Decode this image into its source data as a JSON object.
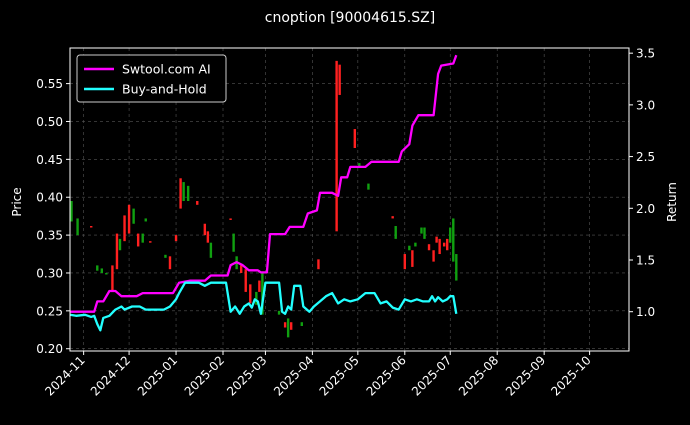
{
  "chart_data": {
    "type": "line",
    "title": "cnoption [90004615.SZ]",
    "ylabel_left": "Price",
    "ylabel_right": "Return",
    "y_left": {
      "lim": [
        0.197,
        0.597
      ],
      "ticks": [
        0.2,
        0.25,
        0.3,
        0.35,
        0.4,
        0.45,
        0.5,
        0.55
      ],
      "tick_labels": [
        "0.20",
        "0.25",
        "0.30",
        "0.35",
        "0.40",
        "0.45",
        "0.50",
        "0.55"
      ]
    },
    "y_right": {
      "lim": [
        0.62,
        3.55
      ],
      "ticks": [
        1.0,
        1.5,
        2.0,
        2.5,
        3.0,
        3.5
      ],
      "tick_labels": [
        "1.0",
        "1.5",
        "2.0",
        "2.5",
        "3.0",
        "3.5"
      ]
    },
    "x": {
      "lim": [
        "2024-10-23",
        "2025-10-27"
      ],
      "ticks": [
        "2024-11-01",
        "2024-12-01",
        "2025-01-01",
        "2025-02-01",
        "2025-03-01",
        "2025-04-01",
        "2025-05-01",
        "2025-06-01",
        "2025-07-01",
        "2025-08-01",
        "2025-09-01",
        "2025-10-01"
      ],
      "tick_labels": [
        "2024-11",
        "2024-12",
        "2025-01",
        "2025-02",
        "2025-03",
        "2025-04",
        "2025-05",
        "2025-06",
        "2025-07",
        "2025-08",
        "2025-09",
        "2025-10"
      ]
    },
    "grid": true,
    "legend": {
      "placement": "top-left",
      "entries": [
        "Swtool.com AI",
        "Buy-and-Hold"
      ]
    },
    "colors": {
      "ai": "#ff00ff",
      "bh": "#22ffff",
      "up": "#ff2020",
      "down": "#10a010",
      "grid": "#555555"
    },
    "series": [
      {
        "name": "Swtool.com AI",
        "axis": "right",
        "points": [
          [
            "2024-10-23",
            1.0
          ],
          [
            "2024-11-08",
            1.0
          ],
          [
            "2024-11-10",
            1.1
          ],
          [
            "2024-11-14",
            1.1
          ],
          [
            "2024-11-18",
            1.2
          ],
          [
            "2024-11-22",
            1.2
          ],
          [
            "2024-11-26",
            1.15
          ],
          [
            "2024-12-06",
            1.15
          ],
          [
            "2024-12-10",
            1.18
          ],
          [
            "2024-12-30",
            1.18
          ],
          [
            "2025-01-03",
            1.28
          ],
          [
            "2025-01-10",
            1.3
          ],
          [
            "2025-01-20",
            1.3
          ],
          [
            "2025-01-24",
            1.35
          ],
          [
            "2025-02-04",
            1.35
          ],
          [
            "2025-02-06",
            1.45
          ],
          [
            "2025-02-10",
            1.48
          ],
          [
            "2025-02-14",
            1.45
          ],
          [
            "2025-02-18",
            1.4
          ],
          [
            "2025-02-24",
            1.4
          ],
          [
            "2025-02-26",
            1.38
          ],
          [
            "2025-03-02",
            1.38
          ],
          [
            "2025-03-04",
            1.75
          ],
          [
            "2025-03-14",
            1.75
          ],
          [
            "2025-03-17",
            1.82
          ],
          [
            "2025-03-26",
            1.82
          ],
          [
            "2025-03-29",
            1.95
          ],
          [
            "2025-04-04",
            1.98
          ],
          [
            "2025-04-06",
            2.15
          ],
          [
            "2025-04-14",
            2.15
          ],
          [
            "2025-04-18",
            2.12
          ],
          [
            "2025-04-20",
            2.3
          ],
          [
            "2025-04-24",
            2.3
          ],
          [
            "2025-04-26",
            2.4
          ],
          [
            "2025-05-06",
            2.4
          ],
          [
            "2025-05-10",
            2.45
          ],
          [
            "2025-05-28",
            2.45
          ],
          [
            "2025-05-30",
            2.55
          ],
          [
            "2025-06-04",
            2.62
          ],
          [
            "2025-06-06",
            2.8
          ],
          [
            "2025-06-10",
            2.9
          ],
          [
            "2025-06-20",
            2.9
          ],
          [
            "2025-06-23",
            3.3
          ],
          [
            "2025-06-25",
            3.38
          ],
          [
            "2025-07-03",
            3.4
          ],
          [
            "2025-07-05",
            3.48
          ]
        ]
      },
      {
        "name": "Buy-and-Hold",
        "axis": "right",
        "points": [
          [
            "2024-10-23",
            0.97
          ],
          [
            "2024-10-27",
            0.96
          ],
          [
            "2024-11-02",
            0.97
          ],
          [
            "2024-11-06",
            0.95
          ],
          [
            "2024-11-08",
            0.96
          ],
          [
            "2024-11-10",
            0.88
          ],
          [
            "2024-11-12",
            0.82
          ],
          [
            "2024-11-14",
            0.94
          ],
          [
            "2024-11-18",
            0.96
          ],
          [
            "2024-11-22",
            1.02
          ],
          [
            "2024-11-26",
            1.05
          ],
          [
            "2024-11-28",
            1.02
          ],
          [
            "2024-12-03",
            1.05
          ],
          [
            "2024-12-08",
            1.05
          ],
          [
            "2024-12-12",
            1.02
          ],
          [
            "2024-12-24",
            1.02
          ],
          [
            "2024-12-28",
            1.05
          ],
          [
            "2025-01-01",
            1.12
          ],
          [
            "2025-01-03",
            1.18
          ],
          [
            "2025-01-07",
            1.28
          ],
          [
            "2025-01-16",
            1.28
          ],
          [
            "2025-01-20",
            1.25
          ],
          [
            "2025-01-24",
            1.28
          ],
          [
            "2025-02-03",
            1.28
          ],
          [
            "2025-02-06",
            1.0
          ],
          [
            "2025-02-09",
            1.05
          ],
          [
            "2025-02-12",
            0.98
          ],
          [
            "2025-02-15",
            1.05
          ],
          [
            "2025-02-18",
            1.08
          ],
          [
            "2025-02-20",
            1.04
          ],
          [
            "2025-02-22",
            1.12
          ],
          [
            "2025-02-24",
            1.1
          ],
          [
            "2025-02-26",
            0.98
          ],
          [
            "2025-03-01",
            1.28
          ],
          [
            "2025-03-06",
            1.28
          ],
          [
            "2025-03-10",
            1.28
          ],
          [
            "2025-03-12",
            1.0
          ],
          [
            "2025-03-14",
            0.98
          ],
          [
            "2025-03-16",
            1.05
          ],
          [
            "2025-03-18",
            1.02
          ],
          [
            "2025-03-20",
            1.25
          ],
          [
            "2025-03-24",
            1.25
          ],
          [
            "2025-03-26",
            1.05
          ],
          [
            "2025-03-30",
            1.0
          ],
          [
            "2025-04-02",
            1.05
          ],
          [
            "2025-04-06",
            1.1
          ],
          [
            "2025-04-10",
            1.15
          ],
          [
            "2025-04-14",
            1.18
          ],
          [
            "2025-04-18",
            1.08
          ],
          [
            "2025-04-22",
            1.12
          ],
          [
            "2025-04-26",
            1.1
          ],
          [
            "2025-05-01",
            1.12
          ],
          [
            "2025-05-06",
            1.18
          ],
          [
            "2025-05-12",
            1.18
          ],
          [
            "2025-05-16",
            1.08
          ],
          [
            "2025-05-20",
            1.1
          ],
          [
            "2025-05-24",
            1.04
          ],
          [
            "2025-05-28",
            1.02
          ],
          [
            "2025-06-01",
            1.12
          ],
          [
            "2025-06-05",
            1.1
          ],
          [
            "2025-06-09",
            1.12
          ],
          [
            "2025-06-13",
            1.1
          ],
          [
            "2025-06-17",
            1.1
          ],
          [
            "2025-06-19",
            1.15
          ],
          [
            "2025-06-21",
            1.1
          ],
          [
            "2025-06-23",
            1.14
          ],
          [
            "2025-06-26",
            1.1
          ],
          [
            "2025-06-29",
            1.12
          ],
          [
            "2025-07-01",
            1.15
          ],
          [
            "2025-07-03",
            1.15
          ],
          [
            "2025-07-05",
            0.98
          ]
        ]
      }
    ],
    "candles": [
      [
        "2024-10-24",
        0.368,
        0.395,
        "down"
      ],
      [
        "2024-10-28",
        0.35,
        0.372,
        "down"
      ],
      [
        "2024-11-06",
        0.36,
        0.362,
        "up"
      ],
      [
        "2024-11-10",
        0.303,
        0.31,
        "down"
      ],
      [
        "2024-11-13",
        0.3,
        0.306,
        "down"
      ],
      [
        "2024-11-16",
        0.298,
        0.3,
        "down"
      ],
      [
        "2024-11-20",
        0.275,
        0.31,
        "up"
      ],
      [
        "2024-11-23",
        0.305,
        0.352,
        "up"
      ],
      [
        "2024-11-25",
        0.33,
        0.345,
        "down"
      ],
      [
        "2024-11-28",
        0.342,
        0.376,
        "up"
      ],
      [
        "2024-12-01",
        0.352,
        0.39,
        "up"
      ],
      [
        "2024-12-04",
        0.365,
        0.385,
        "down"
      ],
      [
        "2024-12-07",
        0.335,
        0.352,
        "up"
      ],
      [
        "2024-12-10",
        0.34,
        0.352,
        "down"
      ],
      [
        "2024-12-12",
        0.368,
        0.372,
        "down"
      ],
      [
        "2024-12-15",
        0.34,
        0.342,
        "up"
      ],
      [
        "2024-12-25",
        0.32,
        0.324,
        "down"
      ],
      [
        "2024-12-28",
        0.305,
        0.322,
        "up"
      ],
      [
        "2025-01-01",
        0.342,
        0.35,
        "up"
      ],
      [
        "2025-01-04",
        0.385,
        0.425,
        "up"
      ],
      [
        "2025-01-06",
        0.395,
        0.42,
        "down"
      ],
      [
        "2025-01-09",
        0.395,
        0.415,
        "down"
      ],
      [
        "2025-01-15",
        0.39,
        0.395,
        "up"
      ],
      [
        "2025-01-20",
        0.35,
        0.365,
        "up"
      ],
      [
        "2025-01-22",
        0.34,
        0.355,
        "up"
      ],
      [
        "2025-01-24",
        0.32,
        0.34,
        "down"
      ],
      [
        "2025-02-06",
        0.37,
        0.372,
        "up"
      ],
      [
        "2025-02-08",
        0.328,
        0.352,
        "down"
      ],
      [
        "2025-02-10",
        0.305,
        0.322,
        "down"
      ],
      [
        "2025-02-13",
        0.3,
        0.31,
        "up"
      ],
      [
        "2025-02-16",
        0.275,
        0.305,
        "up"
      ],
      [
        "2025-02-19",
        0.26,
        0.285,
        "up"
      ],
      [
        "2025-02-23",
        0.258,
        0.275,
        "down"
      ],
      [
        "2025-02-25",
        0.275,
        0.29,
        "up"
      ],
      [
        "2025-02-27",
        0.245,
        0.3,
        "down"
      ],
      [
        "2025-03-10",
        0.245,
        0.25,
        "down"
      ],
      [
        "2025-03-14",
        0.228,
        0.235,
        "up"
      ],
      [
        "2025-03-16",
        0.215,
        0.24,
        "down"
      ],
      [
        "2025-03-18",
        0.225,
        0.235,
        "up"
      ],
      [
        "2025-03-25",
        0.23,
        0.235,
        "down"
      ],
      [
        "2025-04-05",
        0.305,
        0.318,
        "up"
      ],
      [
        "2025-04-17",
        0.355,
        0.58,
        "up"
      ],
      [
        "2025-04-19",
        0.535,
        0.575,
        "up"
      ],
      [
        "2025-04-29",
        0.465,
        0.49,
        "up"
      ],
      [
        "2025-05-02",
        0.44,
        0.445,
        "down"
      ],
      [
        "2025-05-08",
        0.41,
        0.418,
        "down"
      ],
      [
        "2025-05-24",
        0.372,
        0.375,
        "up"
      ],
      [
        "2025-05-26",
        0.345,
        0.362,
        "down"
      ],
      [
        "2025-06-01",
        0.305,
        0.325,
        "up"
      ],
      [
        "2025-06-04",
        0.33,
        0.336,
        "down"
      ],
      [
        "2025-06-06",
        0.308,
        0.33,
        "up"
      ],
      [
        "2025-06-08",
        0.335,
        0.34,
        "down"
      ],
      [
        "2025-06-12",
        0.352,
        0.36,
        "down"
      ],
      [
        "2025-06-14",
        0.345,
        0.36,
        "down"
      ],
      [
        "2025-06-17",
        0.33,
        0.338,
        "up"
      ],
      [
        "2025-06-20",
        0.315,
        0.33,
        "up"
      ],
      [
        "2025-06-22",
        0.34,
        0.348,
        "up"
      ],
      [
        "2025-06-24",
        0.325,
        0.345,
        "up"
      ],
      [
        "2025-06-27",
        0.335,
        0.34,
        "up"
      ],
      [
        "2025-06-29",
        0.33,
        0.345,
        "up"
      ],
      [
        "2025-07-01",
        0.34,
        0.36,
        "down"
      ],
      [
        "2025-07-03",
        0.315,
        0.372,
        "down"
      ],
      [
        "2025-07-05",
        0.29,
        0.325,
        "down"
      ]
    ]
  }
}
